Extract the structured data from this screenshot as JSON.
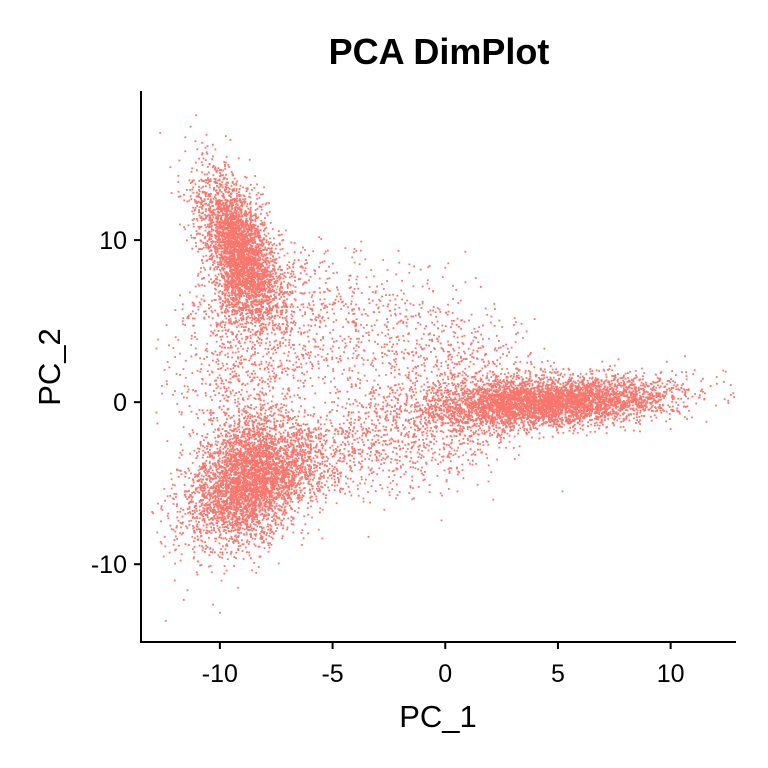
{
  "chart_data": {
    "type": "scatter",
    "title": "PCA DimPlot",
    "xlabel": "PC_1",
    "ylabel": "PC_2",
    "xlim": [
      -13.5,
      12.9
    ],
    "ylim": [
      -14.8,
      19.2
    ],
    "x_ticks": [
      -10,
      -5,
      0,
      5,
      10
    ],
    "x_tick_labels": [
      "-10",
      "-5",
      "0",
      "5",
      "10"
    ],
    "y_ticks": [
      -10,
      0,
      10
    ],
    "y_tick_labels": [
      "-10",
      "0",
      "10"
    ],
    "grid": false,
    "legend": "none",
    "point_color": "#F8766D",
    "series": [
      {
        "clusters": [
          {
            "center": [
              -9.2,
              9.5
            ],
            "spread": [
              0.9,
              2.3
            ],
            "corr": -0.55,
            "count": 3200
          },
          {
            "center": [
              -8.7,
              -5.0
            ],
            "spread": [
              1.4,
              1.9
            ],
            "corr": 0.35,
            "count": 3800
          },
          {
            "center": [
              4.8,
              0.0
            ],
            "spread": [
              2.6,
              0.75
            ],
            "corr": 0.25,
            "count": 4200
          }
        ],
        "bridges": [
          {
            "from": [
              -9.4,
              8.0
            ],
            "to": [
              4.0,
              0.3
            ],
            "width": 1.6,
            "count": 1400
          },
          {
            "from": [
              -9.4,
              8.0
            ],
            "to": [
              -8.8,
              -4.0
            ],
            "width": 1.2,
            "count": 1100
          },
          {
            "from": [
              -7.5,
              -4.5
            ],
            "to": [
              3.0,
              0.0
            ],
            "width": 1.3,
            "count": 1500
          }
        ],
        "outliers": [
          [
            -12.4,
            -13.5
          ],
          [
            -12.0,
            -11.0
          ],
          [
            -11.6,
            -12.2
          ],
          [
            -11.3,
            17.0
          ],
          [
            -10.6,
            16.5
          ],
          [
            -10.3,
            -12.5
          ],
          [
            11.5,
            0.2
          ],
          [
            10.8,
            0.8
          ],
          [
            5.2,
            -5.5
          ],
          [
            -11.0,
            15.6
          ],
          [
            -12.2,
            14.5
          ],
          [
            -10.0,
            -13.0
          ]
        ]
      }
    ]
  }
}
